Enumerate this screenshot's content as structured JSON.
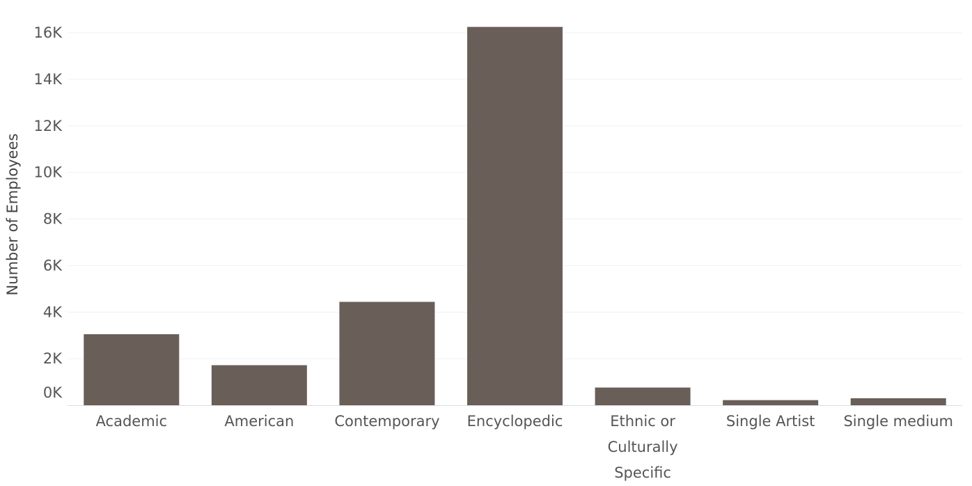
{
  "chart_data": {
    "type": "bar",
    "title": "",
    "xlabel": "",
    "ylabel": "Number of Employees",
    "categories": [
      "Academic",
      "American",
      "Contemporary",
      "Encyclopedic",
      "Ethnic or Culturally Specific",
      "Single Artist",
      "Single medium"
    ],
    "category_label_lines": [
      [
        "Academic"
      ],
      [
        "American"
      ],
      [
        "Contemporary"
      ],
      [
        "Encyclopedic"
      ],
      [
        "Ethnic or",
        "Culturally",
        "Specific"
      ],
      [
        "Single Artist"
      ],
      [
        "Single medium"
      ]
    ],
    "values": [
      3050,
      1720,
      4440,
      16250,
      760,
      220,
      300
    ],
    "ylim": [
      0,
      16000
    ],
    "yticks": [
      0,
      2000,
      4000,
      6000,
      8000,
      10000,
      12000,
      14000,
      16000
    ],
    "ytick_labels": [
      "0K",
      "2K",
      "4K",
      "6K",
      "8K",
      "10K",
      "12K",
      "14K",
      "16K"
    ],
    "bar_color": "#695f58",
    "grid": true,
    "legend": "none"
  }
}
